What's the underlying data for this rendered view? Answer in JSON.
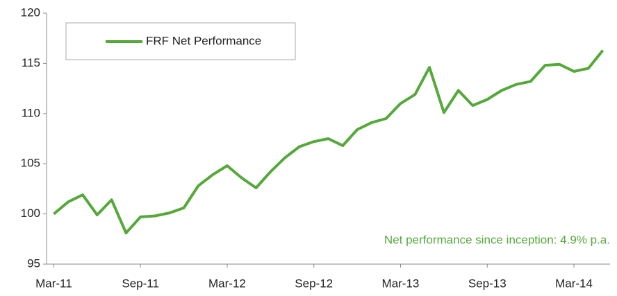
{
  "chart_data": {
    "type": "line",
    "categories": [
      "Mar-11",
      null,
      null,
      null,
      null,
      null,
      "Sep-11",
      null,
      null,
      null,
      null,
      null,
      "Mar-12",
      null,
      null,
      null,
      null,
      null,
      "Sep-12",
      null,
      null,
      null,
      null,
      null,
      "Mar-13",
      null,
      null,
      null,
      null,
      null,
      "Sep-13",
      null,
      null,
      null,
      null,
      null,
      "Mar-14",
      null,
      null
    ],
    "series": [
      {
        "name": "FRF Net Performance",
        "color": "#55a83a",
        "values": [
          100.0,
          101.2,
          101.9,
          99.9,
          101.4,
          98.1,
          99.7,
          99.8,
          100.1,
          100.6,
          102.8,
          103.9,
          104.8,
          103.6,
          102.6,
          104.2,
          105.6,
          106.7,
          107.2,
          107.5,
          106.8,
          108.4,
          109.1,
          109.5,
          111.0,
          111.9,
          114.6,
          110.1,
          112.3,
          110.8,
          111.4,
          112.3,
          112.9,
          113.2,
          114.8,
          114.9,
          114.2,
          114.5,
          116.3
        ]
      }
    ],
    "ylim": [
      95,
      120
    ],
    "yticks": [
      95,
      100,
      105,
      110,
      115,
      120
    ],
    "grid": false,
    "legend": "top-left",
    "annotation": "Net performance since inception: 4.9% p.a."
  }
}
